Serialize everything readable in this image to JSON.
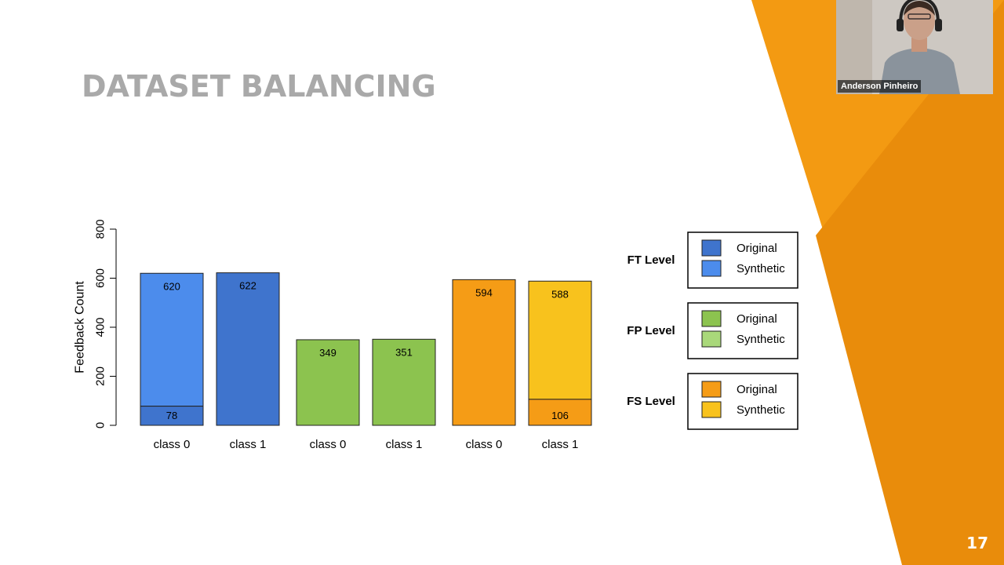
{
  "slide": {
    "title": "DATASET BALANCING",
    "page_number": "17"
  },
  "video_call": {
    "participant_name": "Anderson Pinheiro"
  },
  "colors": {
    "background": "#ffffff",
    "title": "#a9a9a9",
    "accent_orange": "#f39a12",
    "accent_orange_dark": "#e98c0b",
    "ft_original": "#3f74cd",
    "ft_synthetic": "#4c8cec",
    "fp_original": "#8cc34f",
    "fp_synthetic": "#a9d87a",
    "fs_original": "#f59c16",
    "fs_synthetic": "#f8c21d"
  },
  "chart_data": {
    "type": "bar",
    "stacked": true,
    "ylabel": "Feedback Count",
    "ylim": [
      0,
      800
    ],
    "yticks": [
      "0",
      "200",
      "400",
      "600",
      "800"
    ],
    "grid": false,
    "bars": [
      {
        "category": "class 0",
        "level": "FT",
        "original": 78,
        "synthetic": 542,
        "labels": [
          "620",
          "78"
        ]
      },
      {
        "category": "class 1",
        "level": "FT",
        "original": 622,
        "synthetic": 0,
        "labels": [
          "622"
        ]
      },
      {
        "category": "class 0",
        "level": "FP",
        "original": 349,
        "synthetic": 0,
        "labels": [
          "349"
        ]
      },
      {
        "category": "class 1",
        "level": "FP",
        "original": 351,
        "synthetic": 0,
        "labels": [
          "351"
        ]
      },
      {
        "category": "class 0",
        "level": "FS",
        "original": 594,
        "synthetic": 0,
        "labels": [
          "594"
        ]
      },
      {
        "category": "class 1",
        "level": "FS",
        "original": 106,
        "synthetic": 482,
        "labels": [
          "588",
          "106"
        ]
      }
    ],
    "legend": {
      "placement": "right",
      "groups": [
        {
          "label": "FT Level",
          "original_color": "#3f74cd",
          "synthetic_color": "#4c8cec"
        },
        {
          "label": "FP Level",
          "original_color": "#8cc34f",
          "synthetic_color": "#a9d87a"
        },
        {
          "label": "FS Level",
          "original_color": "#f59c16",
          "synthetic_color": "#f8c21d"
        }
      ],
      "entries": [
        "Original",
        "Synthetic"
      ]
    }
  }
}
